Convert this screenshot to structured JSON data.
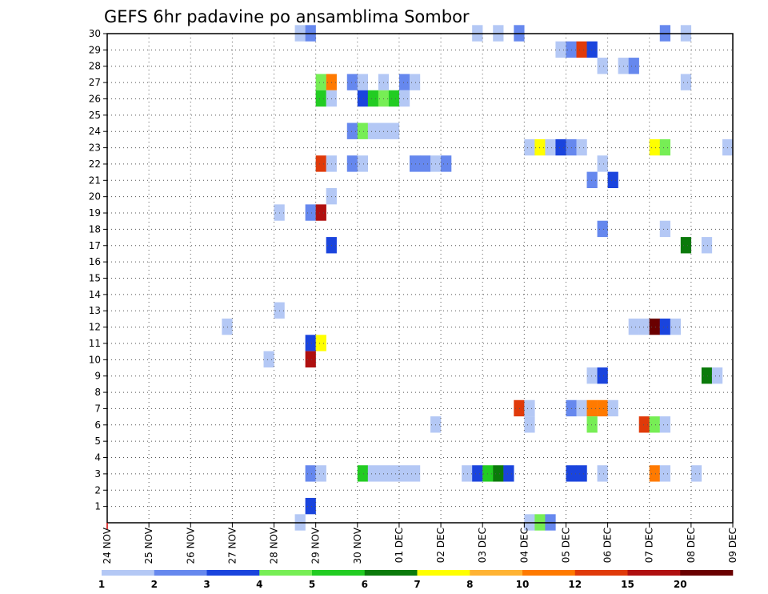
{
  "chart_data": {
    "type": "heatmap",
    "title": "GEFS 6hr padavine po ansamblima Sombor",
    "xlabel": "",
    "ylabel": "",
    "x_tick_labels": [
      "24 NOV",
      "25 NOV",
      "26 NOV",
      "27 NOV",
      "28 NOV",
      "29 NOV",
      "30 NOV",
      "01 DEC",
      "02 DEC",
      "03 DEC",
      "04 DEC",
      "05 DEC",
      "06 DEC",
      "07 DEC",
      "08 DEC",
      "09 DEC"
    ],
    "xlim_days": [
      0,
      15
    ],
    "y_ticks": [
      1,
      2,
      3,
      4,
      5,
      6,
      7,
      8,
      9,
      10,
      11,
      12,
      13,
      14,
      15,
      16,
      17,
      18,
      19,
      20,
      21,
      22,
      23,
      24,
      25,
      26,
      27,
      28,
      29,
      30
    ],
    "ylim": [
      0,
      30
    ],
    "grid": true,
    "colorbar": {
      "levels": [
        "1",
        "2",
        "3",
        "4",
        "5",
        "6",
        "7",
        "8",
        "10",
        "12",
        "15",
        "20"
      ],
      "colors": [
        "#b4c8f5",
        "#6688ee",
        "#1a44dd",
        "#77ee55",
        "#22cc22",
        "#0b7a0b",
        "#ffff00",
        "#ffb333",
        "#ff7a00",
        "#e03a0a",
        "#b01010",
        "#6a0000"
      ]
    },
    "cells": [
      {
        "member": 30,
        "step": 18,
        "bin": 0
      },
      {
        "member": 30,
        "step": 19,
        "bin": 1
      },
      {
        "member": 30,
        "step": 35,
        "bin": 0
      },
      {
        "member": 30,
        "step": 37,
        "bin": 0
      },
      {
        "member": 30,
        "step": 39,
        "bin": 1
      },
      {
        "member": 30,
        "step": 53,
        "bin": 1
      },
      {
        "member": 30,
        "step": 55,
        "bin": 0
      },
      {
        "member": 29,
        "step": 43,
        "bin": 0
      },
      {
        "member": 29,
        "step": 44,
        "bin": 1
      },
      {
        "member": 29,
        "step": 45,
        "bin": 9
      },
      {
        "member": 29,
        "step": 46,
        "bin": 2
      },
      {
        "member": 28,
        "step": 47,
        "bin": 0
      },
      {
        "member": 28,
        "step": 49,
        "bin": 0
      },
      {
        "member": 28,
        "step": 50,
        "bin": 1
      },
      {
        "member": 27,
        "step": 20,
        "bin": 3
      },
      {
        "member": 27,
        "step": 21,
        "bin": 8
      },
      {
        "member": 27,
        "step": 23,
        "bin": 1
      },
      {
        "member": 27,
        "step": 24,
        "bin": 0
      },
      {
        "member": 27,
        "step": 26,
        "bin": 0
      },
      {
        "member": 27,
        "step": 28,
        "bin": 1
      },
      {
        "member": 27,
        "step": 29,
        "bin": 0
      },
      {
        "member": 27,
        "step": 55,
        "bin": 0
      },
      {
        "member": 26,
        "step": 20,
        "bin": 4
      },
      {
        "member": 26,
        "step": 21,
        "bin": 0
      },
      {
        "member": 26,
        "step": 24,
        "bin": 2
      },
      {
        "member": 26,
        "step": 25,
        "bin": 4
      },
      {
        "member": 26,
        "step": 26,
        "bin": 3
      },
      {
        "member": 26,
        "step": 27,
        "bin": 4
      },
      {
        "member": 26,
        "step": 28,
        "bin": 0
      },
      {
        "member": 24,
        "step": 23,
        "bin": 1
      },
      {
        "member": 24,
        "step": 24,
        "bin": 3
      },
      {
        "member": 24,
        "step": 25,
        "bin": 0
      },
      {
        "member": 24,
        "step": 26,
        "bin": 0
      },
      {
        "member": 24,
        "step": 27,
        "bin": 0
      },
      {
        "member": 23,
        "step": 40,
        "bin": 0
      },
      {
        "member": 23,
        "step": 41,
        "bin": 6
      },
      {
        "member": 23,
        "step": 42,
        "bin": 0
      },
      {
        "member": 23,
        "step": 43,
        "bin": 2
      },
      {
        "member": 23,
        "step": 44,
        "bin": 1
      },
      {
        "member": 23,
        "step": 45,
        "bin": 0
      },
      {
        "member": 23,
        "step": 52,
        "bin": 6
      },
      {
        "member": 23,
        "step": 53,
        "bin": 3
      },
      {
        "member": 23,
        "step": 59,
        "bin": 0
      },
      {
        "member": 22,
        "step": 20,
        "bin": 9
      },
      {
        "member": 22,
        "step": 21,
        "bin": 0
      },
      {
        "member": 22,
        "step": 23,
        "bin": 1
      },
      {
        "member": 22,
        "step": 24,
        "bin": 0
      },
      {
        "member": 22,
        "step": 29,
        "bin": 1
      },
      {
        "member": 22,
        "step": 30,
        "bin": 1
      },
      {
        "member": 22,
        "step": 31,
        "bin": 0
      },
      {
        "member": 22,
        "step": 32,
        "bin": 1
      },
      {
        "member": 22,
        "step": 47,
        "bin": 0
      },
      {
        "member": 21,
        "step": 46,
        "bin": 1
      },
      {
        "member": 21,
        "step": 48,
        "bin": 2
      },
      {
        "member": 20,
        "step": 21,
        "bin": 0
      },
      {
        "member": 19,
        "step": 16,
        "bin": 0
      },
      {
        "member": 19,
        "step": 19,
        "bin": 1
      },
      {
        "member": 19,
        "step": 20,
        "bin": 10
      },
      {
        "member": 18,
        "step": 47,
        "bin": 1
      },
      {
        "member": 18,
        "step": 53,
        "bin": 0
      },
      {
        "member": 17,
        "step": 21,
        "bin": 2
      },
      {
        "member": 17,
        "step": 55,
        "bin": 5
      },
      {
        "member": 17,
        "step": 57,
        "bin": 0
      },
      {
        "member": 13,
        "step": 16,
        "bin": 0
      },
      {
        "member": 12,
        "step": 11,
        "bin": 0
      },
      {
        "member": 12,
        "step": 50,
        "bin": 0
      },
      {
        "member": 12,
        "step": 51,
        "bin": 0
      },
      {
        "member": 12,
        "step": 52,
        "bin": 11
      },
      {
        "member": 12,
        "step": 53,
        "bin": 2
      },
      {
        "member": 12,
        "step": 54,
        "bin": 0
      },
      {
        "member": 11,
        "step": 19,
        "bin": 2
      },
      {
        "member": 11,
        "step": 20,
        "bin": 6
      },
      {
        "member": 10,
        "step": 15,
        "bin": 0
      },
      {
        "member": 10,
        "step": 19,
        "bin": 10
      },
      {
        "member": 9,
        "step": 46,
        "bin": 0
      },
      {
        "member": 9,
        "step": 47,
        "bin": 2
      },
      {
        "member": 9,
        "step": 57,
        "bin": 5
      },
      {
        "member": 9,
        "step": 58,
        "bin": 0
      },
      {
        "member": 7,
        "step": 39,
        "bin": 9
      },
      {
        "member": 7,
        "step": 40,
        "bin": 0
      },
      {
        "member": 7,
        "step": 44,
        "bin": 1
      },
      {
        "member": 7,
        "step": 45,
        "bin": 0
      },
      {
        "member": 7,
        "step": 46,
        "bin": 8
      },
      {
        "member": 7,
        "step": 47,
        "bin": 8
      },
      {
        "member": 7,
        "step": 48,
        "bin": 0
      },
      {
        "member": 6,
        "step": 31,
        "bin": 0
      },
      {
        "member": 6,
        "step": 40,
        "bin": 0
      },
      {
        "member": 6,
        "step": 46,
        "bin": 3
      },
      {
        "member": 6,
        "step": 51,
        "bin": 9
      },
      {
        "member": 6,
        "step": 52,
        "bin": 3
      },
      {
        "member": 6,
        "step": 53,
        "bin": 0
      },
      {
        "member": 3,
        "step": 19,
        "bin": 1
      },
      {
        "member": 3,
        "step": 20,
        "bin": 0
      },
      {
        "member": 3,
        "step": 24,
        "bin": 4
      },
      {
        "member": 3,
        "step": 25,
        "bin": 0
      },
      {
        "member": 3,
        "step": 26,
        "bin": 0
      },
      {
        "member": 3,
        "step": 27,
        "bin": 0
      },
      {
        "member": 3,
        "step": 28,
        "bin": 0
      },
      {
        "member": 3,
        "step": 29,
        "bin": 0
      },
      {
        "member": 3,
        "step": 34,
        "bin": 0
      },
      {
        "member": 3,
        "step": 35,
        "bin": 2
      },
      {
        "member": 3,
        "step": 36,
        "bin": 4
      },
      {
        "member": 3,
        "step": 37,
        "bin": 5
      },
      {
        "member": 3,
        "step": 38,
        "bin": 2
      },
      {
        "member": 3,
        "step": 44,
        "bin": 2
      },
      {
        "member": 3,
        "step": 45,
        "bin": 2
      },
      {
        "member": 3,
        "step": 47,
        "bin": 0
      },
      {
        "member": 3,
        "step": 52,
        "bin": 8
      },
      {
        "member": 3,
        "step": 53,
        "bin": 0
      },
      {
        "member": 3,
        "step": 56,
        "bin": 0
      },
      {
        "member": 1,
        "step": 19,
        "bin": 2
      },
      {
        "member": 0,
        "step": 18,
        "bin": 0
      },
      {
        "member": 0,
        "step": 40,
        "bin": 0
      },
      {
        "member": 0,
        "step": 41,
        "bin": 3
      },
      {
        "member": 0,
        "step": 42,
        "bin": 1
      }
    ]
  }
}
